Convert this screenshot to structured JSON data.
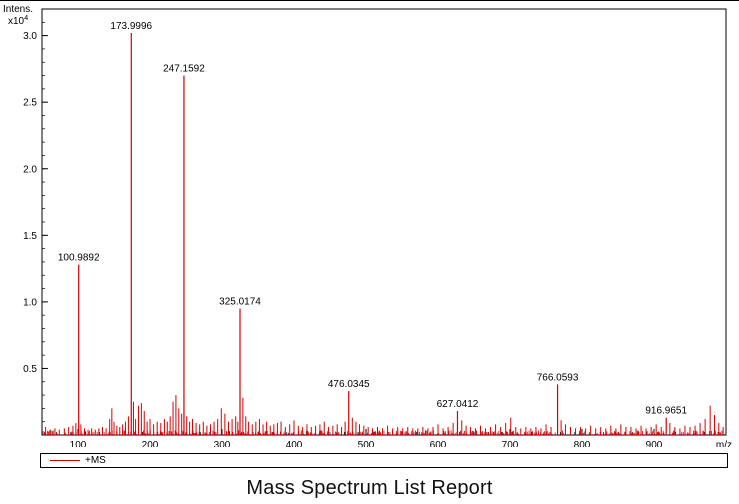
{
  "page": {
    "title": "Mass Spectrum List Report"
  },
  "legend": {
    "label": "+MS",
    "color": "#d40000"
  },
  "chart_data": {
    "type": "line",
    "subtype": "mass-spectrum-stick-plot",
    "title": "",
    "xlabel": "m/z",
    "ylabel": "Intens.",
    "ylabel_exponent_base": "x10",
    "ylabel_exponent": "4",
    "xlim": [
      50,
      1000
    ],
    "ylim": [
      0,
      3.2
    ],
    "xticks": [
      100,
      200,
      300,
      400,
      500,
      600,
      700,
      800,
      900
    ],
    "yticks": [
      0.5,
      1.0,
      1.5,
      2.0,
      2.5,
      3.0
    ],
    "ytick_labels": [
      "0.5",
      "1.0",
      "1.5",
      "2.0",
      "2.5",
      "3.0"
    ],
    "x_minor_step": 20,
    "y_minor_step": 0.1,
    "grid": false,
    "legend_position": "bottom",
    "series_color": "#d40000",
    "labeled_peaks": [
      {
        "mz": 100.9892,
        "intensity": 1.28,
        "label": "100.9892"
      },
      {
        "mz": 173.9996,
        "intensity": 3.02,
        "label": "173.9996"
      },
      {
        "mz": 247.1592,
        "intensity": 2.7,
        "label": "247.1592"
      },
      {
        "mz": 325.0174,
        "intensity": 0.95,
        "label": "325.0174"
      },
      {
        "mz": 476.0345,
        "intensity": 0.33,
        "label": "476.0345"
      },
      {
        "mz": 627.0412,
        "intensity": 0.18,
        "label": "627.0412"
      },
      {
        "mz": 766.0593,
        "intensity": 0.38,
        "label": "766.0593"
      },
      {
        "mz": 916.9651,
        "intensity": 0.13,
        "label": "916.9651"
      }
    ],
    "peaks": [
      [
        55,
        0.06
      ],
      [
        62,
        0.04
      ],
      [
        68,
        0.05
      ],
      [
        74,
        0.04
      ],
      [
        81,
        0.05
      ],
      [
        87,
        0.06
      ],
      [
        93,
        0.07
      ],
      [
        97,
        0.09
      ],
      [
        104,
        0.08
      ],
      [
        109,
        0.05
      ],
      [
        114,
        0.04
      ],
      [
        119,
        0.05
      ],
      [
        124,
        0.04
      ],
      [
        129,
        0.05
      ],
      [
        134,
        0.06
      ],
      [
        139,
        0.05
      ],
      [
        144,
        0.12
      ],
      [
        147,
        0.2
      ],
      [
        150,
        0.1
      ],
      [
        154,
        0.07
      ],
      [
        158,
        0.06
      ],
      [
        162,
        0.08
      ],
      [
        166,
        0.1
      ],
      [
        170,
        0.14
      ],
      [
        177,
        0.25
      ],
      [
        180,
        0.12
      ],
      [
        184,
        0.22
      ],
      [
        188,
        0.24
      ],
      [
        192,
        0.18
      ],
      [
        196,
        0.1
      ],
      [
        200,
        0.12
      ],
      [
        205,
        0.08
      ],
      [
        210,
        0.1
      ],
      [
        215,
        0.09
      ],
      [
        220,
        0.12
      ],
      [
        224,
        0.1
      ],
      [
        228,
        0.14
      ],
      [
        232,
        0.25
      ],
      [
        236,
        0.3
      ],
      [
        240,
        0.2
      ],
      [
        244,
        0.16
      ],
      [
        251,
        0.14
      ],
      [
        255,
        0.1
      ],
      [
        259,
        0.12
      ],
      [
        264,
        0.09
      ],
      [
        269,
        0.08
      ],
      [
        274,
        0.1
      ],
      [
        279,
        0.07
      ],
      [
        284,
        0.08
      ],
      [
        289,
        0.1
      ],
      [
        294,
        0.12
      ],
      [
        299,
        0.2
      ],
      [
        304,
        0.16
      ],
      [
        309,
        0.1
      ],
      [
        314,
        0.12
      ],
      [
        319,
        0.14
      ],
      [
        322,
        0.1
      ],
      [
        329,
        0.28
      ],
      [
        333,
        0.14
      ],
      [
        337,
        0.1
      ],
      [
        342,
        0.08
      ],
      [
        347,
        0.1
      ],
      [
        352,
        0.12
      ],
      [
        357,
        0.08
      ],
      [
        362,
        0.1
      ],
      [
        367,
        0.07
      ],
      [
        372,
        0.08
      ],
      [
        377,
        0.09
      ],
      [
        382,
        0.1
      ],
      [
        388,
        0.06
      ],
      [
        394,
        0.08
      ],
      [
        400,
        0.11
      ],
      [
        406,
        0.07
      ],
      [
        412,
        0.06
      ],
      [
        418,
        0.08
      ],
      [
        424,
        0.06
      ],
      [
        430,
        0.07
      ],
      [
        436,
        0.08
      ],
      [
        442,
        0.1
      ],
      [
        448,
        0.06
      ],
      [
        454,
        0.07
      ],
      [
        460,
        0.08
      ],
      [
        466,
        0.06
      ],
      [
        471,
        0.1
      ],
      [
        481,
        0.13
      ],
      [
        486,
        0.1
      ],
      [
        491,
        0.08
      ],
      [
        497,
        0.07
      ],
      [
        503,
        0.06
      ],
      [
        509,
        0.05
      ],
      [
        516,
        0.06
      ],
      [
        523,
        0.05
      ],
      [
        530,
        0.07
      ],
      [
        537,
        0.05
      ],
      [
        544,
        0.06
      ],
      [
        551,
        0.05
      ],
      [
        558,
        0.06
      ],
      [
        565,
        0.05
      ],
      [
        572,
        0.05
      ],
      [
        579,
        0.06
      ],
      [
        586,
        0.05
      ],
      [
        593,
        0.06
      ],
      [
        600,
        0.08
      ],
      [
        607,
        0.05
      ],
      [
        614,
        0.06
      ],
      [
        621,
        0.09
      ],
      [
        633,
        0.11
      ],
      [
        639,
        0.07
      ],
      [
        645,
        0.06
      ],
      [
        652,
        0.05
      ],
      [
        659,
        0.07
      ],
      [
        666,
        0.05
      ],
      [
        673,
        0.06
      ],
      [
        680,
        0.08
      ],
      [
        687,
        0.06
      ],
      [
        694,
        0.09
      ],
      [
        701,
        0.13
      ],
      [
        708,
        0.06
      ],
      [
        715,
        0.05
      ],
      [
        722,
        0.06
      ],
      [
        729,
        0.05
      ],
      [
        736,
        0.06
      ],
      [
        743,
        0.05
      ],
      [
        750,
        0.08
      ],
      [
        757,
        0.06
      ],
      [
        771,
        0.11
      ],
      [
        777,
        0.08
      ],
      [
        784,
        0.06
      ],
      [
        791,
        0.05
      ],
      [
        798,
        0.06
      ],
      [
        805,
        0.05
      ],
      [
        812,
        0.07
      ],
      [
        819,
        0.05
      ],
      [
        826,
        0.06
      ],
      [
        833,
        0.05
      ],
      [
        840,
        0.07
      ],
      [
        847,
        0.05
      ],
      [
        854,
        0.08
      ],
      [
        861,
        0.06
      ],
      [
        868,
        0.06
      ],
      [
        875,
        0.05
      ],
      [
        882,
        0.07
      ],
      [
        889,
        0.05
      ],
      [
        896,
        0.06
      ],
      [
        903,
        0.08
      ],
      [
        910,
        0.06
      ],
      [
        922,
        0.09
      ],
      [
        929,
        0.06
      ],
      [
        936,
        0.05
      ],
      [
        943,
        0.07
      ],
      [
        950,
        0.06
      ],
      [
        957,
        0.07
      ],
      [
        964,
        0.09
      ],
      [
        971,
        0.12
      ],
      [
        978,
        0.22
      ],
      [
        984,
        0.15
      ],
      [
        990,
        0.09
      ],
      [
        996,
        0.06
      ]
    ],
    "baseline_noise": {
      "seed": 42,
      "count": 520,
      "max_intensity": 0.035
    }
  }
}
